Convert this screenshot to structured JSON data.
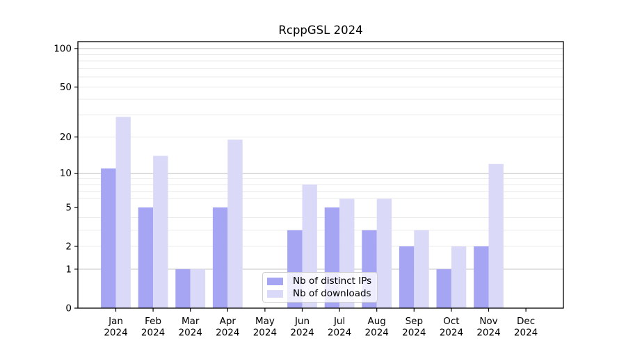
{
  "chart_data": {
    "type": "bar",
    "title": "RcppGSL 2024",
    "categories": [
      "Jan",
      "Feb",
      "Mar",
      "Apr",
      "May",
      "Jun",
      "Jul",
      "Aug",
      "Sep",
      "Oct",
      "Nov",
      "Dec"
    ],
    "x_year": "2024",
    "series": [
      {
        "name": "Nb of distinct IPs",
        "color": "#a5a5f3",
        "values": [
          11,
          5,
          1,
          5,
          0,
          3,
          5,
          3,
          2,
          1,
          2,
          0
        ]
      },
      {
        "name": "Nb of downloads",
        "color": "#dadaf8",
        "values": [
          29,
          14,
          1,
          19,
          0,
          8,
          6,
          6,
          3,
          2,
          12,
          0
        ]
      }
    ],
    "yscale": "log1p",
    "ylim": [
      0,
      113
    ],
    "yticks": [
      0,
      1,
      2,
      5,
      10,
      20,
      50,
      100
    ],
    "gridlines": {
      "major": [
        1,
        10,
        100
      ],
      "minor": [
        2,
        3,
        4,
        6,
        7,
        8,
        9,
        20,
        30,
        40,
        60,
        70,
        80,
        90,
        50
      ]
    },
    "grid": "horizontal",
    "legend_position": "lower-center",
    "colors": {
      "major_grid": "#bdbdbd",
      "minor_grid": "#e9e9e9",
      "axis": "#000000",
      "text": "#000000",
      "legend_border": "#d0d0d0"
    }
  }
}
